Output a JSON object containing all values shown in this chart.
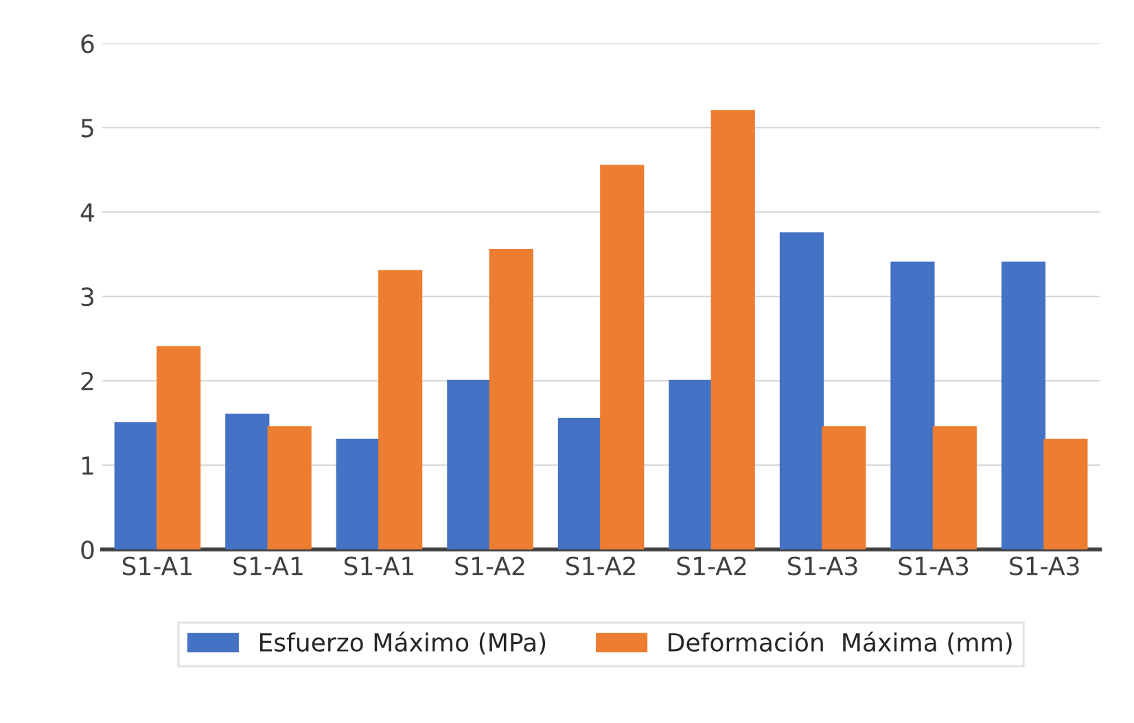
{
  "chart_data": {
    "type": "bar",
    "categories": [
      "S1-A1",
      "S1-A1",
      "S1-A1",
      "S1-A2",
      "S1-A2",
      "S1-A2",
      "S1-A3",
      "S1-A3",
      "S1-A3"
    ],
    "series": [
      {
        "name": "Esfuerzo Máximo (MPa)",
        "color": "#4472c4",
        "values": [
          1.5,
          1.6,
          1.3,
          2.0,
          1.55,
          2.0,
          3.75,
          3.4,
          3.4
        ]
      },
      {
        "name": "Deformación  Máxima (mm)",
        "color": "#ed7d31",
        "values": [
          2.4,
          1.45,
          3.3,
          3.55,
          4.55,
          5.2,
          1.45,
          1.45,
          1.3
        ]
      }
    ],
    "ylim": [
      0,
      6
    ],
    "yticks": [
      0,
      1,
      2,
      3,
      4,
      5,
      6
    ],
    "grid": "y",
    "legend": "bottom"
  }
}
